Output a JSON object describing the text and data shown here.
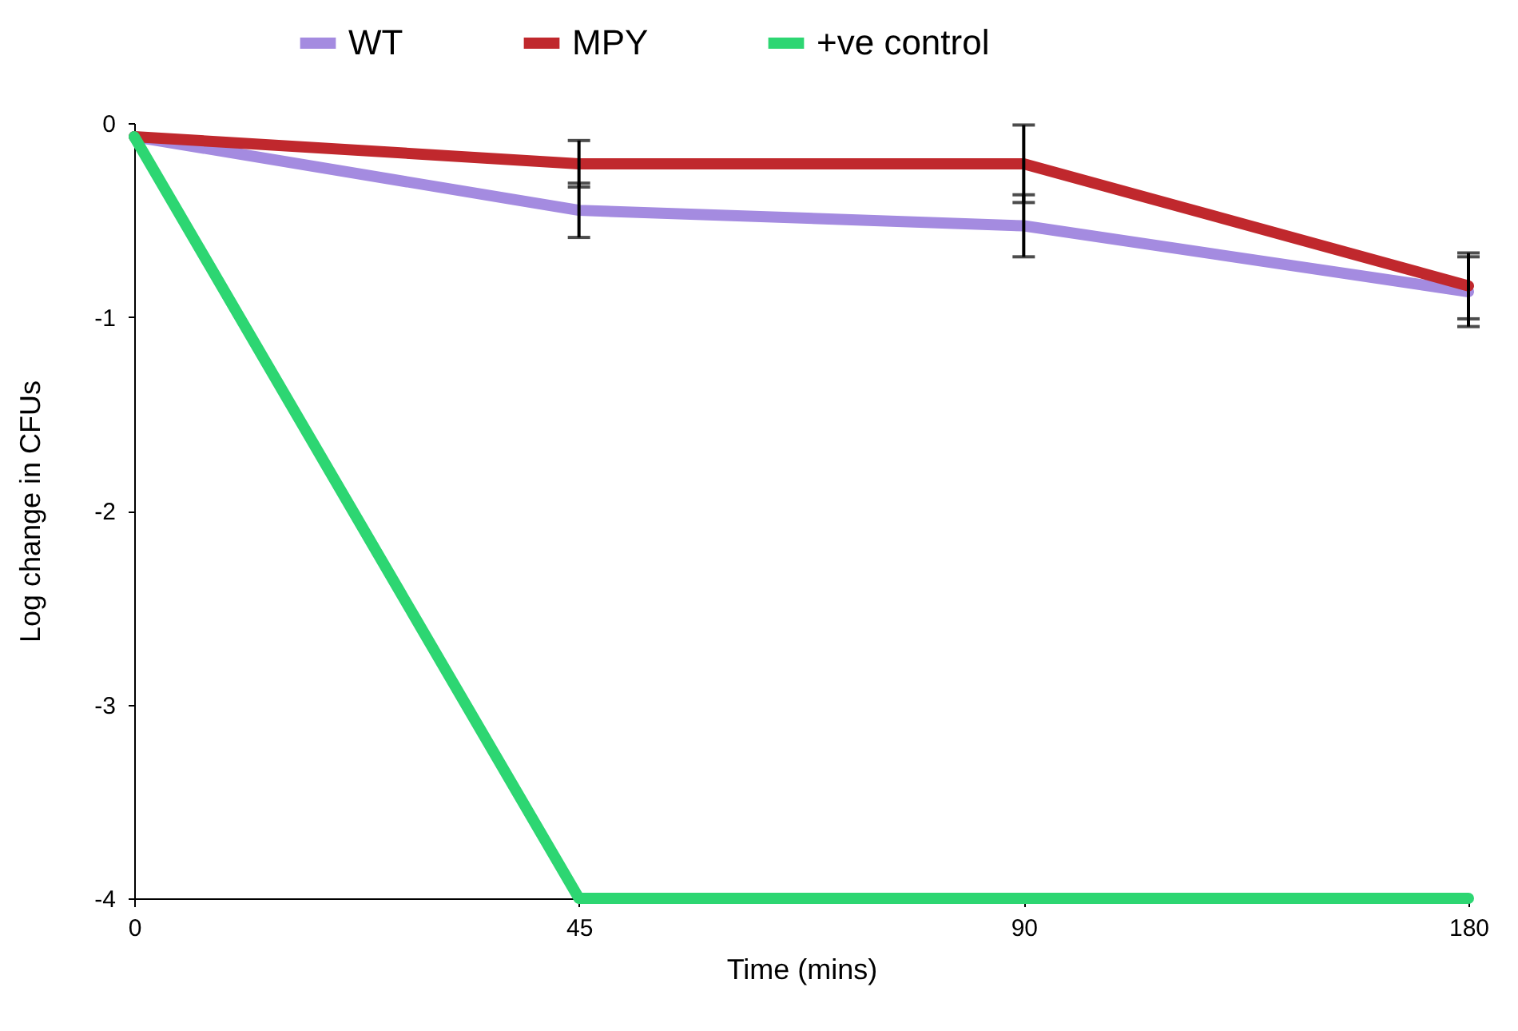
{
  "chart_data": {
    "type": "line",
    "xlabel": "Time (mins)",
    "ylabel": "Log change in CFUs",
    "categories": [
      "0",
      "45",
      "90",
      "180"
    ],
    "series": [
      {
        "name": "WT",
        "color": "#a48be0",
        "values": [
          -0.07,
          -0.45,
          -0.53,
          -0.87
        ],
        "errors": [
          null,
          0.14,
          0.16,
          0.18
        ]
      },
      {
        "name": "MPY",
        "color": "#c0282d",
        "values": [
          -0.07,
          -0.21,
          -0.21,
          -0.84
        ],
        "errors": [
          null,
          0.12,
          0.2,
          0.17
        ]
      },
      {
        "name": "+ve control",
        "color": "#2dd672",
        "values": [
          -0.07,
          -4,
          -4,
          -4
        ]
      }
    ],
    "ylim": [
      -4,
      0
    ],
    "yticks": [
      0,
      -1,
      -2,
      -3,
      -4
    ],
    "grid": false,
    "legend": "top",
    "marker": "none"
  }
}
